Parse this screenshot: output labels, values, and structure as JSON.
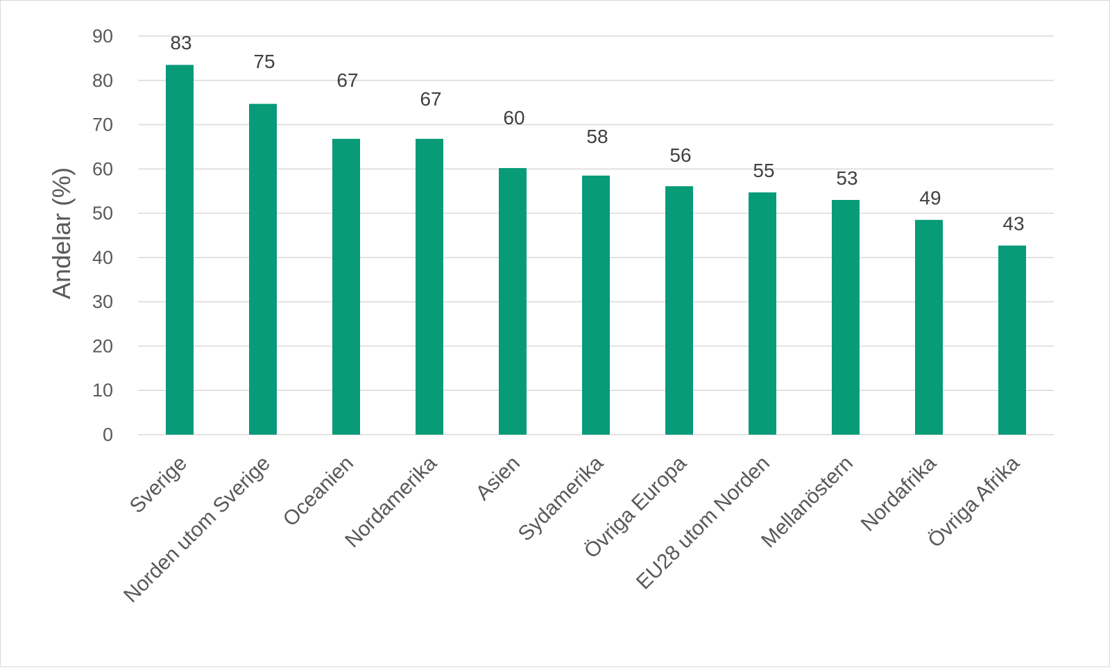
{
  "chart_data": {
    "type": "bar",
    "title": "",
    "xlabel": "",
    "ylabel": "Andelar (%)",
    "ylim": [
      0,
      90
    ],
    "yticks": [
      0,
      10,
      20,
      30,
      40,
      50,
      60,
      70,
      80,
      90
    ],
    "grid": true,
    "categories": [
      "Sverige",
      "Norden utom Sverige",
      "Oceanien",
      "Nordamerika",
      "Asien",
      "Sydamerika",
      "Övriga Europa",
      "EU28 utom Norden",
      "Mellanöstern",
      "Nordafrika",
      "Övriga Afrika"
    ],
    "values": [
      83.5,
      74.7,
      66.8,
      66.8,
      60.2,
      58.5,
      56.1,
      54.7,
      53.0,
      48.5,
      42.7
    ],
    "data_labels": [
      "83",
      "75",
      "67",
      "67",
      "60",
      "58",
      "56",
      "55",
      "53",
      "49",
      "43"
    ],
    "bar_color": "#079b78"
  }
}
